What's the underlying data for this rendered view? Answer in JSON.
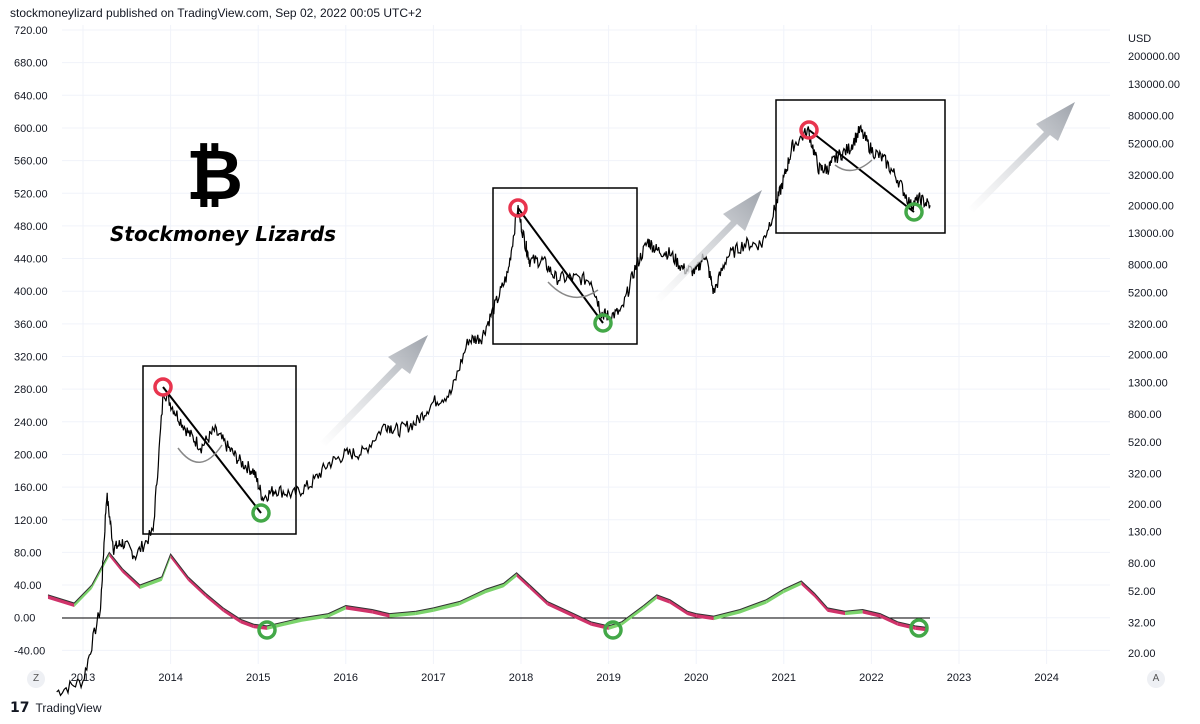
{
  "header": {
    "text": "stockmoneylizard published on TradingView.com, Sep 02, 2022 00:05 UTC+2"
  },
  "watermark": {
    "logo_symbol": "₿",
    "brand": "Stockmoney Lizards"
  },
  "footer": {
    "logo": "17",
    "brand": "TradingView"
  },
  "corner_buttons": {
    "left": "Z",
    "right": "A"
  },
  "colors": {
    "price": "#000000",
    "indicator_up": "#7bd36b",
    "indicator_down": "#d0336a",
    "peak_circle": "#e8344e",
    "trough_circle": "#43a848",
    "arrow": "#b8bcc4",
    "grid": "#f0f3fa"
  },
  "chart_data": {
    "type": "line",
    "title": "",
    "xlabel": "",
    "x_ticks": [
      "2013",
      "2014",
      "2015",
      "2016",
      "2017",
      "2018",
      "2019",
      "2020",
      "2021",
      "2022",
      "2023",
      "2024"
    ],
    "left_axis": {
      "ticks": [
        "720.00",
        "680.00",
        "640.00",
        "600.00",
        "560.00",
        "520.00",
        "480.00",
        "440.00",
        "400.00",
        "360.00",
        "320.00",
        "280.00",
        "240.00",
        "200.00",
        "160.00",
        "120.00",
        "80.00",
        "40.00",
        "0.00",
        "-40.00"
      ]
    },
    "right_axis": {
      "unit": "USD",
      "scale": "log",
      "ticks": [
        "200000.00",
        "130000.00",
        "80000.00",
        "52000.00",
        "32000.00",
        "20000.00",
        "13000.00",
        "8000.00",
        "5200.00",
        "3200.00",
        "2000.00",
        "1300.00",
        "800.00",
        "520.00",
        "320.00",
        "200.00",
        "130.00",
        "80.00",
        "52.00",
        "32.00",
        "20.00"
      ]
    },
    "series": [
      {
        "type": "log-line",
        "x": [
          2012.7,
          2013.0,
          2013.2,
          2013.27,
          2013.35,
          2013.45,
          2013.6,
          2013.8,
          2013.92,
          2014.05,
          2014.2,
          2014.35,
          2014.5,
          2014.65,
          2014.8,
          2014.95,
          2015.05,
          2015.2,
          2015.4,
          2015.6,
          2015.8,
          2016.0,
          2016.2,
          2016.45,
          2016.6,
          2016.8,
          2017.0,
          2017.2,
          2017.4,
          2017.55,
          2017.7,
          2017.85,
          2017.96,
          2018.05,
          2018.1,
          2018.25,
          2018.4,
          2018.6,
          2018.8,
          2018.92,
          2019.0,
          2019.15,
          2019.3,
          2019.45,
          2019.55,
          2019.7,
          2019.85,
          2020.0,
          2020.1,
          2020.2,
          2020.35,
          2020.55,
          2020.75,
          2020.9,
          2021.0,
          2021.1,
          2021.28,
          2021.4,
          2021.5,
          2021.6,
          2021.75,
          2021.87,
          2022.0,
          2022.15,
          2022.3,
          2022.45,
          2022.55,
          2022.67
        ],
        "y": [
          11,
          13,
          40,
          230,
          100,
          110,
          90,
          130,
          1150,
          830,
          600,
          480,
          620,
          480,
          380,
          330,
          220,
          250,
          230,
          270,
          370,
          430,
          440,
          680,
          620,
          700,
          960,
          1100,
          2500,
          2600,
          4200,
          7000,
          19000,
          11000,
          8500,
          8500,
          6500,
          6500,
          6300,
          3800,
          3600,
          3900,
          7500,
          11500,
          10000,
          9500,
          7500,
          7200,
          9500,
          5200,
          9000,
          11000,
          11000,
          19000,
          30000,
          50000,
          63000,
          35000,
          35000,
          42000,
          48000,
          64000,
          47000,
          40000,
          30000,
          20000,
          22000,
          20000
        ]
      },
      {
        "type": "oscillator",
        "x": [
          2012.6,
          2012.9,
          2013.1,
          2013.3,
          2013.45,
          2013.65,
          2013.9,
          2014.0,
          2014.2,
          2014.4,
          2014.6,
          2014.8,
          2014.95,
          2015.1,
          2015.3,
          2015.5,
          2015.8,
          2016.0,
          2016.3,
          2016.5,
          2016.8,
          2017.0,
          2017.3,
          2017.6,
          2017.8,
          2017.95,
          2018.1,
          2018.3,
          2018.6,
          2018.8,
          2019.0,
          2019.15,
          2019.4,
          2019.55,
          2019.7,
          2019.9,
          2020.0,
          2020.2,
          2020.5,
          2020.8,
          2021.0,
          2021.2,
          2021.35,
          2021.5,
          2021.7,
          2021.9,
          2022.1,
          2022.3,
          2022.5,
          2022.65
        ],
        "y": [
          28,
          18,
          40,
          80,
          60,
          40,
          50,
          78,
          50,
          30,
          12,
          -2,
          -8,
          -10,
          -5,
          0,
          5,
          15,
          10,
          5,
          8,
          12,
          20,
          35,
          42,
          55,
          40,
          20,
          5,
          -5,
          -10,
          -5,
          15,
          28,
          22,
          8,
          5,
          2,
          10,
          22,
          35,
          45,
          30,
          12,
          8,
          10,
          5,
          -5,
          -10,
          -12
        ]
      }
    ],
    "overlays": {
      "boxes": 3,
      "peak_to_trough_lines": 3,
      "trend_arrows": 4
    }
  }
}
